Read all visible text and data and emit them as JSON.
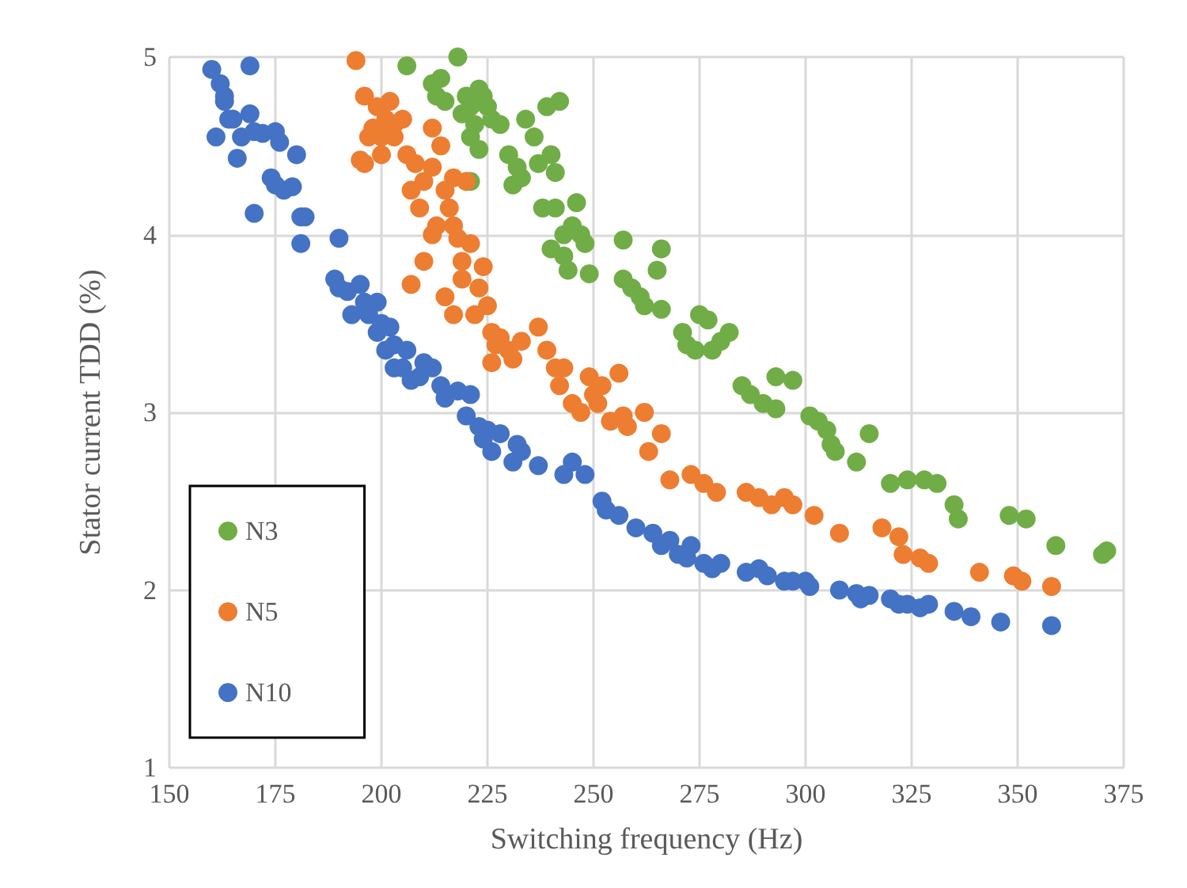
{
  "chart_data": {
    "type": "scatter",
    "xlabel": "Switching frequency (Hz)",
    "ylabel": "Stator current TDD (%)",
    "xlim": [
      150,
      375
    ],
    "xticks": [
      150,
      175,
      200,
      225,
      250,
      275,
      300,
      325,
      350,
      375
    ],
    "ylim": [
      1,
      5
    ],
    "yticks": [
      1,
      2,
      3,
      4,
      5
    ],
    "grid": true,
    "legend": "bottom left",
    "marker": "circle",
    "series": [
      {
        "name": "N3",
        "color": "#70ad47",
        "x": [
          206,
          212,
          214,
          213,
          215,
          218,
          219,
          220,
          221,
          222,
          223,
          224,
          225,
          226,
          228,
          221,
          223,
          221,
          230,
          232,
          233,
          231,
          234,
          236,
          237,
          238,
          239,
          240,
          241,
          242,
          241,
          243,
          243,
          244,
          245,
          246,
          247,
          248,
          249,
          240,
          257,
          257,
          259,
          261,
          262,
          265,
          266,
          266,
          271,
          272,
          274,
          275,
          277,
          278,
          280,
          282,
          285,
          287,
          290,
          293,
          293,
          297,
          301,
          303,
          305,
          306,
          307,
          312,
          315,
          320,
          324,
          328,
          331,
          335,
          336,
          348,
          352,
          359,
          370,
          371
        ],
        "values": [
          4.95,
          4.85,
          4.88,
          4.78,
          4.75,
          5.0,
          4.68,
          4.78,
          4.72,
          4.62,
          4.82,
          4.78,
          4.72,
          4.65,
          4.62,
          4.55,
          4.48,
          4.3,
          4.45,
          4.38,
          4.32,
          4.28,
          4.65,
          4.55,
          4.4,
          4.15,
          4.72,
          4.45,
          4.35,
          4.75,
          4.15,
          4.0,
          3.88,
          3.8,
          4.05,
          4.18,
          4.0,
          3.95,
          3.78,
          3.92,
          3.97,
          3.75,
          3.7,
          3.65,
          3.6,
          3.8,
          3.92,
          3.58,
          3.45,
          3.38,
          3.35,
          3.55,
          3.52,
          3.35,
          3.4,
          3.45,
          3.15,
          3.1,
          3.05,
          3.02,
          3.2,
          3.18,
          2.98,
          2.95,
          2.9,
          2.82,
          2.78,
          2.72,
          2.88,
          2.6,
          2.62,
          2.62,
          2.6,
          2.48,
          2.4,
          2.42,
          2.4,
          2.25,
          2.2,
          2.22
        ]
      },
      {
        "name": "N5",
        "color": "#ed7d31",
        "x": [
          194,
          196,
          197,
          195,
          196,
          198,
          199,
          200,
          200,
          201,
          202,
          203,
          203,
          205,
          206,
          207,
          208,
          209,
          210,
          212,
          212,
          213,
          214,
          215,
          216,
          217,
          217,
          218,
          219,
          220,
          212,
          210,
          207,
          215,
          217,
          219,
          221,
          222,
          223,
          224,
          225,
          226,
          227,
          228,
          230,
          231,
          226,
          233,
          237,
          239,
          241,
          243,
          242,
          245,
          247,
          249,
          250,
          251,
          252,
          254,
          256,
          257,
          258,
          262,
          263,
          266,
          268,
          273,
          276,
          279,
          286,
          289,
          292,
          295,
          297,
          302,
          308,
          318,
          322,
          323,
          327,
          329,
          341,
          349,
          351,
          358
        ],
        "values": [
          4.98,
          4.78,
          4.55,
          4.42,
          4.4,
          4.6,
          4.72,
          4.45,
          4.55,
          4.65,
          4.75,
          4.62,
          4.55,
          4.65,
          4.45,
          4.25,
          4.4,
          4.15,
          4.3,
          4.38,
          4.6,
          4.05,
          4.5,
          4.25,
          4.15,
          4.05,
          4.32,
          3.98,
          3.85,
          4.3,
          4.0,
          3.85,
          3.72,
          3.65,
          3.55,
          3.75,
          3.95,
          3.55,
          3.7,
          3.82,
          3.6,
          3.45,
          3.38,
          3.42,
          3.35,
          3.3,
          3.28,
          3.4,
          3.48,
          3.35,
          3.25,
          3.25,
          3.15,
          3.05,
          3.0,
          3.2,
          3.1,
          3.05,
          3.15,
          2.95,
          3.22,
          2.98,
          2.92,
          3.0,
          2.78,
          2.88,
          2.62,
          2.65,
          2.6,
          2.55,
          2.55,
          2.52,
          2.48,
          2.52,
          2.48,
          2.42,
          2.32,
          2.35,
          2.3,
          2.2,
          2.18,
          2.15,
          2.1,
          2.08,
          2.05,
          2.02
        ]
      },
      {
        "name": "N10",
        "color": "#4472c4",
        "x": [
          160,
          161,
          162,
          163,
          163,
          164,
          165,
          166,
          167,
          169,
          169,
          170,
          170,
          172,
          174,
          175,
          175,
          176,
          177,
          179,
          180,
          181,
          182,
          181,
          190,
          189,
          190,
          192,
          193,
          195,
          196,
          197,
          199,
          199,
          200,
          201,
          202,
          203,
          203,
          205,
          206,
          207,
          209,
          210,
          212,
          214,
          215,
          218,
          220,
          221,
          223,
          224,
          225,
          226,
          228,
          231,
          232,
          233,
          237,
          243,
          245,
          248,
          252,
          253,
          256,
          260,
          264,
          266,
          268,
          270,
          272,
          273,
          276,
          278,
          280,
          286,
          289,
          291,
          295,
          297,
          300,
          301,
          308,
          312,
          313,
          315,
          320,
          322,
          324,
          327,
          329,
          335,
          339,
          346,
          358
        ],
        "values": [
          4.93,
          4.55,
          4.85,
          4.78,
          4.75,
          4.65,
          4.65,
          4.43,
          4.55,
          4.95,
          4.68,
          4.12,
          4.58,
          4.57,
          4.32,
          4.58,
          4.28,
          4.52,
          4.25,
          4.27,
          4.45,
          4.1,
          4.1,
          3.95,
          3.98,
          3.75,
          3.7,
          3.68,
          3.55,
          3.72,
          3.62,
          3.55,
          3.62,
          3.45,
          3.5,
          3.35,
          3.48,
          3.38,
          3.25,
          3.25,
          3.35,
          3.18,
          3.2,
          3.28,
          3.25,
          3.15,
          3.08,
          3.12,
          2.98,
          3.1,
          2.92,
          2.85,
          2.9,
          2.78,
          2.88,
          2.72,
          2.82,
          2.78,
          2.7,
          2.65,
          2.72,
          2.65,
          2.5,
          2.45,
          2.42,
          2.35,
          2.32,
          2.25,
          2.28,
          2.2,
          2.18,
          2.25,
          2.15,
          2.12,
          2.15,
          2.1,
          2.12,
          2.08,
          2.05,
          2.05,
          2.05,
          2.02,
          2.0,
          1.98,
          1.95,
          1.97,
          1.95,
          1.92,
          1.92,
          1.9,
          1.92,
          1.88,
          1.85,
          1.82,
          1.8
        ]
      }
    ]
  }
}
